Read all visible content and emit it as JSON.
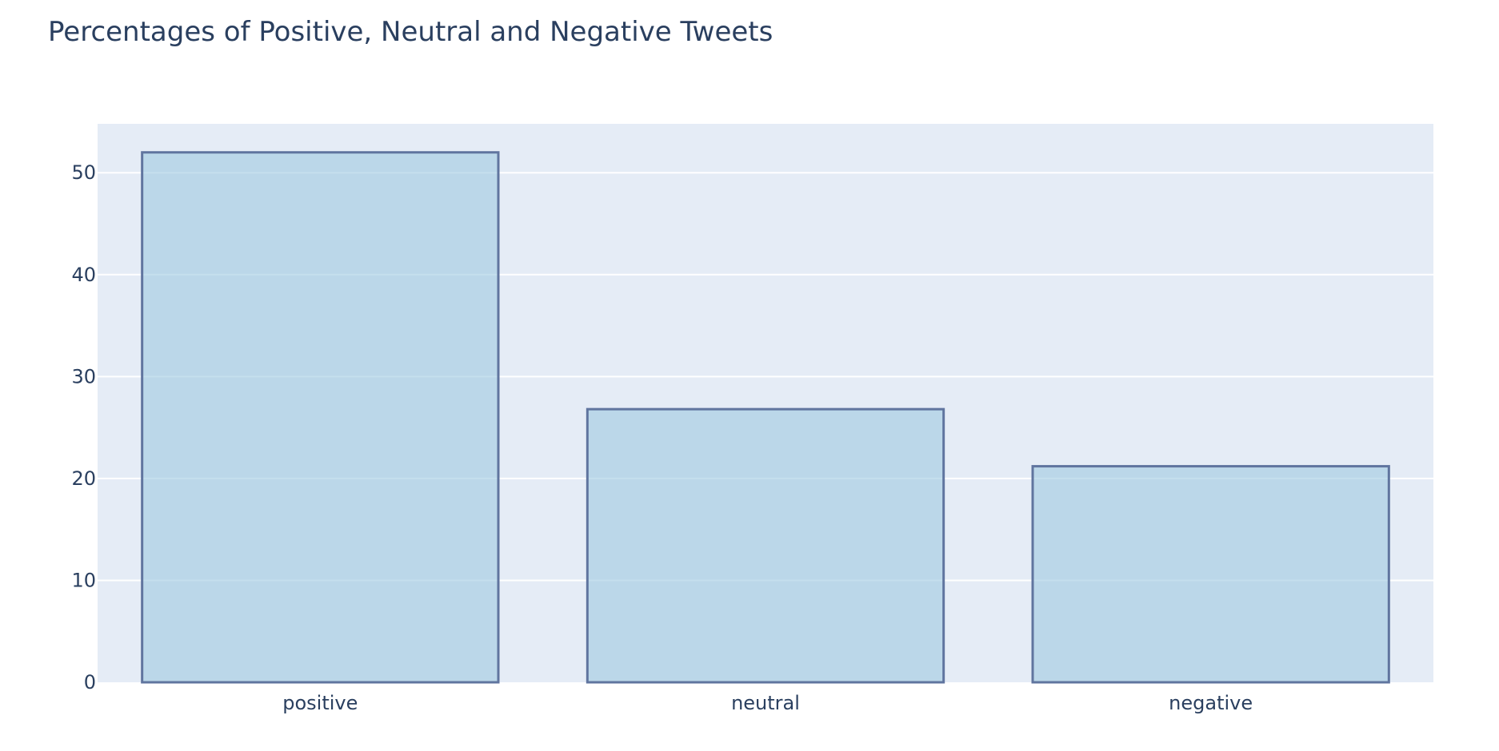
{
  "chart_data": {
    "type": "bar",
    "title": "Percentages of Positive, Neutral and Negative Tweets",
    "categories": [
      "positive",
      "neutral",
      "negative"
    ],
    "values": [
      52.0,
      26.8,
      21.2
    ],
    "xlabel": "",
    "ylabel": "",
    "ylim": [
      0,
      54.8
    ],
    "yticks": [
      0,
      10,
      20,
      30,
      40,
      50
    ],
    "grid": true,
    "colors": {
      "plot_background": "#e5ecf6",
      "bar_fill": "rgba(158,202,225,0.6)",
      "bar_outline": "#60759f",
      "grid": "#ffffff",
      "text": "#2a3f5f"
    }
  }
}
